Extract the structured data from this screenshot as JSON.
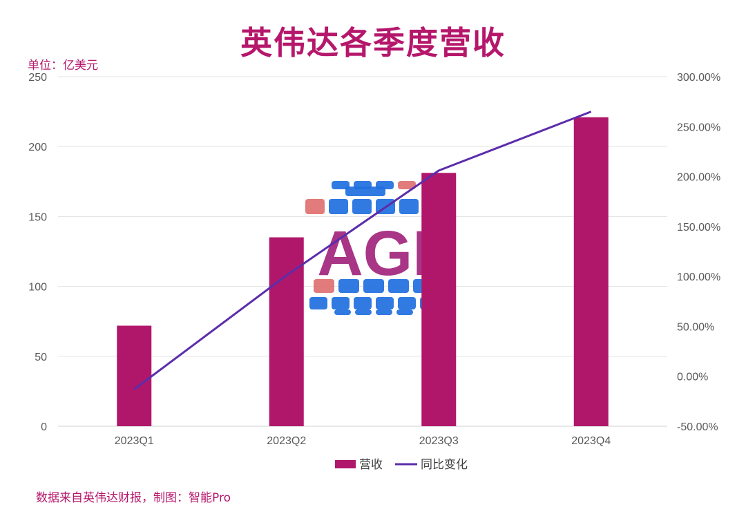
{
  "chart_data": {
    "type": "bar",
    "title": "英伟达各季度营收",
    "unit_label": "单位：亿美元",
    "categories": [
      "2023Q1",
      "2023Q2",
      "2023Q3",
      "2023Q4"
    ],
    "series": [
      {
        "name": "营收",
        "type": "bar",
        "axis": "left",
        "color": "#b0176b",
        "values": [
          71.9,
          135.1,
          181.2,
          221.0
        ]
      },
      {
        "name": "同比变化",
        "type": "line",
        "axis": "right",
        "color": "#5b2dab",
        "values": [
          -13.0,
          101.0,
          206.0,
          265.0
        ]
      }
    ],
    "y_left": {
      "ylim": [
        0,
        250
      ],
      "ticks": [
        "0",
        "50",
        "100",
        "150",
        "200",
        "250"
      ],
      "tick_values": [
        0,
        50,
        100,
        150,
        200,
        250
      ]
    },
    "y_right": {
      "ylim": [
        -50,
        300
      ],
      "ticks": [
        "-50.00%",
        "0.00%",
        "50.00%",
        "100.00%",
        "150.00%",
        "200.00%",
        "250.00%",
        "300.00%"
      ],
      "tick_values": [
        -50,
        0,
        50,
        100,
        150,
        200,
        250,
        300
      ]
    },
    "grid": true,
    "legend_position": "bottom",
    "source": "数据来自英伟达财报，制图：智能Pro",
    "watermark_text": "AGI"
  }
}
